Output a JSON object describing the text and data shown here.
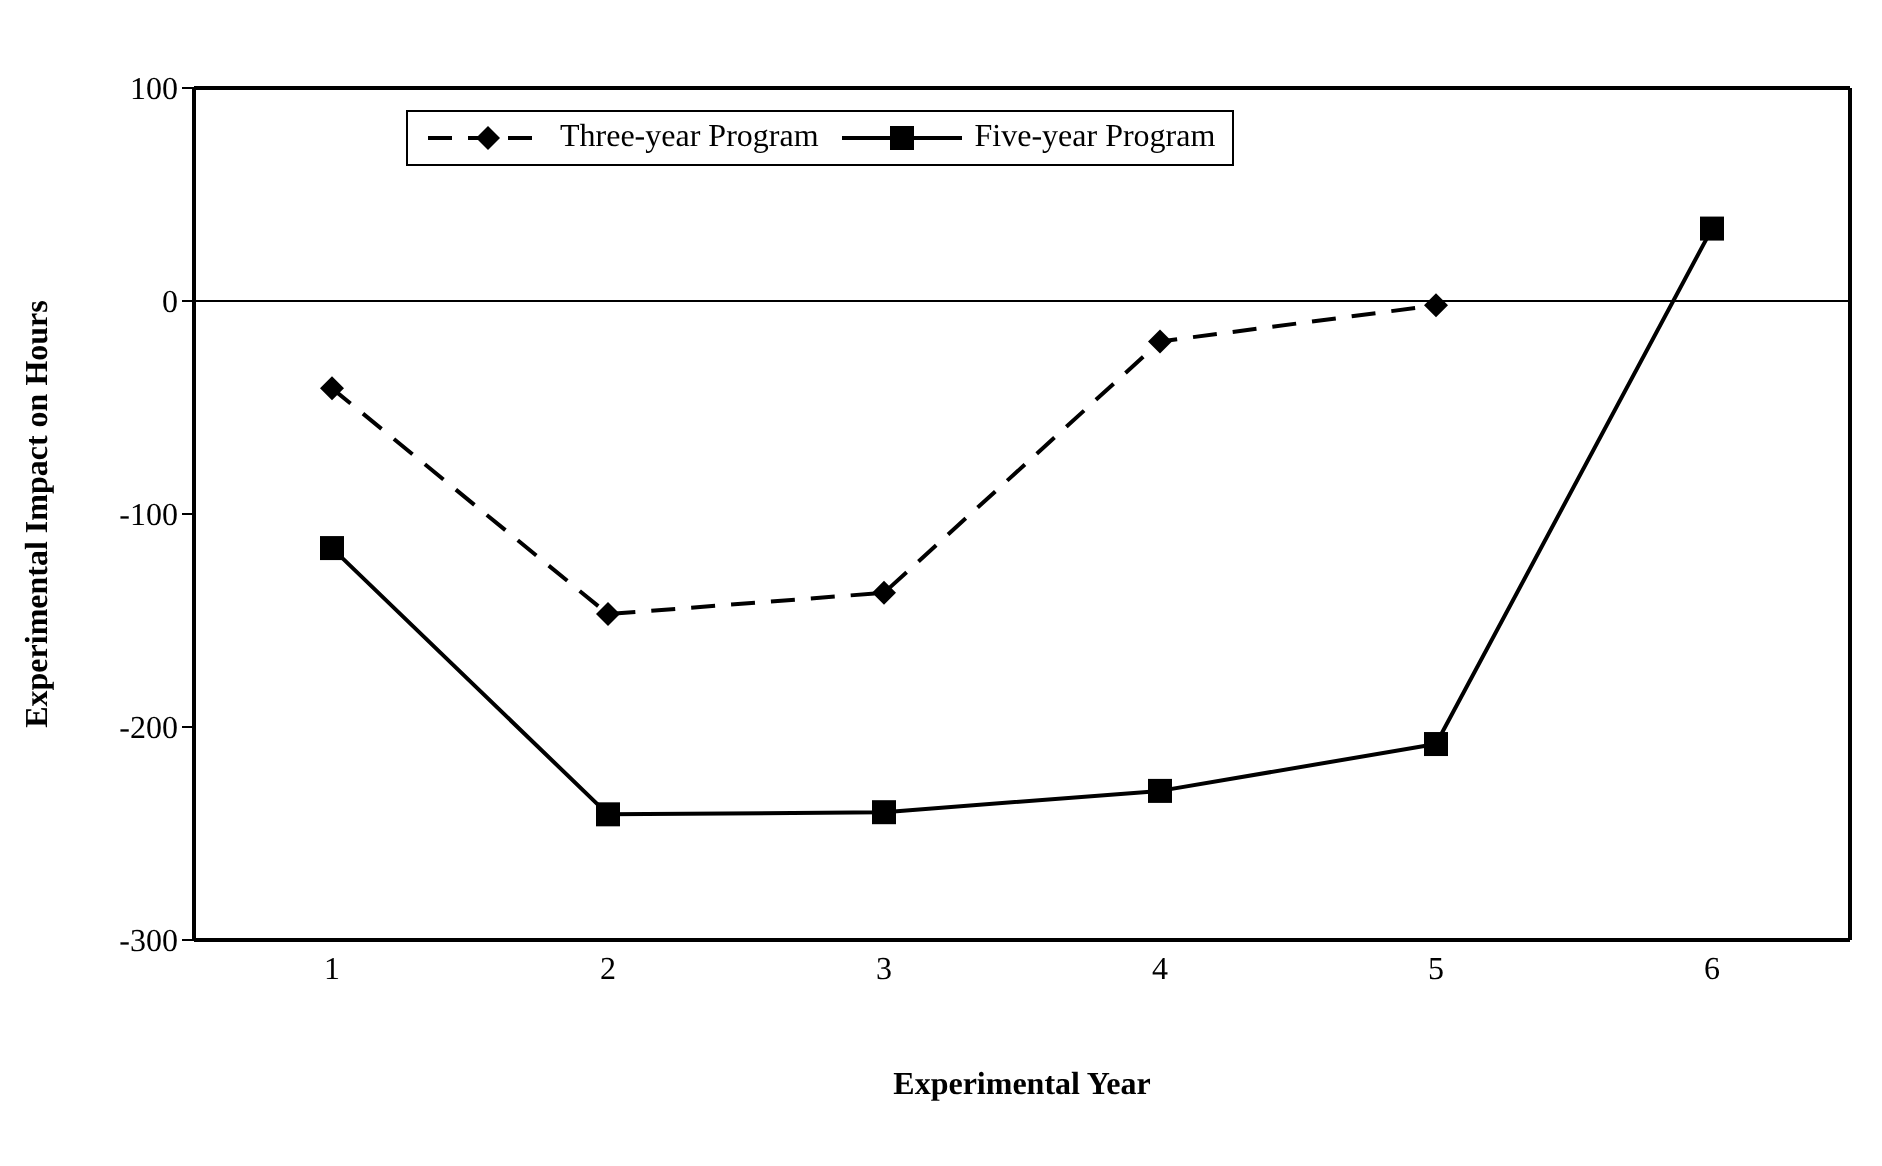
{
  "chart_data": {
    "type": "line",
    "xlabel": "Experimental Year",
    "ylabel": "Experimental Impact on Hours",
    "categories": [
      "1",
      "2",
      "3",
      "4",
      "5",
      "6"
    ],
    "series": [
      {
        "name": "Three-year Program",
        "color": "#000000",
        "values": [
          -41,
          -147,
          -137,
          -19,
          -2,
          null
        ],
        "marker": "diamond",
        "line_style": "dashed"
      },
      {
        "name": "Five-year Program",
        "color": "#000000",
        "values": [
          -116,
          -241,
          -240,
          -230,
          -208,
          34
        ],
        "marker": "square",
        "line_style": "solid"
      }
    ],
    "ylim": [
      -300,
      100
    ],
    "yticks": [
      -300,
      -200,
      -100,
      0,
      100
    ],
    "grid": false,
    "legend": "top",
    "ref_lines": [
      {
        "axis": "y",
        "value": 0
      }
    ]
  }
}
